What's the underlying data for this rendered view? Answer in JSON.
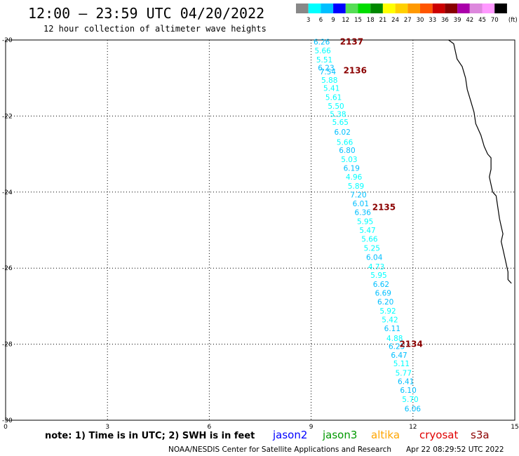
{
  "title": "12:00 — 23:59 UTC 04/20/2022",
  "subtitle": "12 hour collection of altimeter wave heights",
  "note": "note: 1) Time is in UTC; 2) SWH is in feet",
  "credit": "NOAA/NESDIS Center for Satellite Applications and Research",
  "timestamp": "Apr 22 08:29:52 UTC 2022",
  "satellites": [
    {
      "name": "jason2",
      "color": "#0000ff"
    },
    {
      "name": "jason3",
      "color": "#009900"
    },
    {
      "name": "altika",
      "color": "#ffa500"
    },
    {
      "name": "cryosat",
      "color": "#e00000"
    },
    {
      "name": "s3a",
      "color": "#8b0000"
    }
  ],
  "color_scale": {
    "unit": "(ft)",
    "labels": [
      "3",
      "6",
      "9",
      "12",
      "15",
      "18",
      "21",
      "24",
      "27",
      "30",
      "33",
      "36",
      "39",
      "42",
      "45",
      "70"
    ],
    "colors": [
      "#888888",
      "#00ffff",
      "#00bfff",
      "#0000ff",
      "#55dd55",
      "#00dd00",
      "#008800",
      "#ffff00",
      "#ffd000",
      "#ff9900",
      "#ff5500",
      "#cc0000",
      "#880000",
      "#aa00aa",
      "#dd88dd",
      "#ff99ff",
      "#000000"
    ]
  },
  "chart_data": {
    "type": "scatter",
    "x_ticks": [
      "0",
      "3",
      "6",
      "9",
      "12",
      "15"
    ],
    "y_ticks": [
      "-20",
      "-22",
      "-24",
      "-26",
      "-28",
      "-30"
    ],
    "xlim": [
      0,
      15
    ],
    "ylim": [
      -30,
      -20
    ],
    "grid": true,
    "passes": [
      {
        "label": "2137",
        "x": 9.85,
        "y": -20.05
      },
      {
        "label": "2136",
        "x": 9.95,
        "y": -20.8
      },
      {
        "label": "2135",
        "x": 10.8,
        "y": -24.4
      },
      {
        "label": "2134",
        "x": 11.6,
        "y": -28.0
      }
    ],
    "observations": [
      {
        "value": "6.26",
        "x": 9.07,
        "y": -20.05
      },
      {
        "value": "5.66",
        "x": 9.1,
        "y": -20.28
      },
      {
        "value": "5.51",
        "x": 9.15,
        "y": -20.52
      },
      {
        "value": "6.23",
        "x": 9.2,
        "y": -20.73
      },
      {
        "value": "7.54",
        "x": 9.25,
        "y": -20.83
      },
      {
        "value": "5.88",
        "x": 9.3,
        "y": -21.05
      },
      {
        "value": "5.41",
        "x": 9.36,
        "y": -21.26
      },
      {
        "value": "5.61",
        "x": 9.42,
        "y": -21.5
      },
      {
        "value": "5.50",
        "x": 9.49,
        "y": -21.73
      },
      {
        "value": "5.38",
        "x": 9.55,
        "y": -21.95
      },
      {
        "value": "5.65",
        "x": 9.62,
        "y": -22.16
      },
      {
        "value": "6.02",
        "x": 9.68,
        "y": -22.42
      },
      {
        "value": "5.66",
        "x": 9.75,
        "y": -22.68
      },
      {
        "value": "6.80",
        "x": 9.82,
        "y": -22.9
      },
      {
        "value": "5.03",
        "x": 9.88,
        "y": -23.14
      },
      {
        "value": "6.19",
        "x": 9.95,
        "y": -23.37
      },
      {
        "value": "4.96",
        "x": 10.02,
        "y": -23.6
      },
      {
        "value": "5.89",
        "x": 10.08,
        "y": -23.84
      },
      {
        "value": "7.20",
        "x": 10.15,
        "y": -24.07
      },
      {
        "value": "6.01",
        "x": 10.22,
        "y": -24.3
      },
      {
        "value": "6.36",
        "x": 10.28,
        "y": -24.53
      },
      {
        "value": "5.95",
        "x": 10.35,
        "y": -24.77
      },
      {
        "value": "5.47",
        "x": 10.42,
        "y": -25.0
      },
      {
        "value": "5.66",
        "x": 10.48,
        "y": -25.23
      },
      {
        "value": "5.25",
        "x": 10.55,
        "y": -25.47
      },
      {
        "value": "6.04",
        "x": 10.62,
        "y": -25.71
      },
      {
        "value": "4.73",
        "x": 10.68,
        "y": -25.96
      },
      {
        "value": "5.95",
        "x": 10.75,
        "y": -26.18
      },
      {
        "value": "6.62",
        "x": 10.82,
        "y": -26.42
      },
      {
        "value": "6.69",
        "x": 10.88,
        "y": -26.65
      },
      {
        "value": "6.20",
        "x": 10.95,
        "y": -26.88
      },
      {
        "value": "5.92",
        "x": 11.02,
        "y": -27.12
      },
      {
        "value": "5.42",
        "x": 11.08,
        "y": -27.35
      },
      {
        "value": "6.11",
        "x": 11.15,
        "y": -27.58
      },
      {
        "value": "4.88",
        "x": 11.22,
        "y": -27.84
      },
      {
        "value": "6.25",
        "x": 11.28,
        "y": -28.05
      },
      {
        "value": "6.47",
        "x": 11.35,
        "y": -28.28
      },
      {
        "value": "5.11",
        "x": 11.42,
        "y": -28.51
      },
      {
        "value": "5.77",
        "x": 11.48,
        "y": -28.75
      },
      {
        "value": "6.41",
        "x": 11.55,
        "y": -28.98
      },
      {
        "value": "6.10",
        "x": 11.62,
        "y": -29.21
      },
      {
        "value": "5.70",
        "x": 11.68,
        "y": -29.45
      },
      {
        "value": "6.06",
        "x": 11.75,
        "y": -29.7
      }
    ],
    "coastline": [
      [
        13.05,
        -20.0
      ],
      [
        13.2,
        -20.1
      ],
      [
        13.25,
        -20.3
      ],
      [
        13.3,
        -20.5
      ],
      [
        13.45,
        -20.7
      ],
      [
        13.55,
        -21.0
      ],
      [
        13.6,
        -21.3
      ],
      [
        13.7,
        -21.6
      ],
      [
        13.8,
        -21.9
      ],
      [
        13.85,
        -22.2
      ],
      [
        14.0,
        -22.5
      ],
      [
        14.1,
        -22.8
      ],
      [
        14.2,
        -23.0
      ],
      [
        14.3,
        -23.1
      ],
      [
        14.3,
        -23.4
      ],
      [
        14.25,
        -23.6
      ],
      [
        14.3,
        -23.8
      ],
      [
        14.35,
        -24.0
      ],
      [
        14.45,
        -24.1
      ],
      [
        14.5,
        -24.4
      ],
      [
        14.55,
        -24.7
      ],
      [
        14.6,
        -24.9
      ],
      [
        14.65,
        -25.1
      ],
      [
        14.6,
        -25.3
      ],
      [
        14.65,
        -25.5
      ],
      [
        14.7,
        -25.7
      ],
      [
        14.75,
        -25.9
      ],
      [
        14.8,
        -26.1
      ],
      [
        14.8,
        -26.3
      ],
      [
        14.9,
        -26.4
      ]
    ]
  }
}
